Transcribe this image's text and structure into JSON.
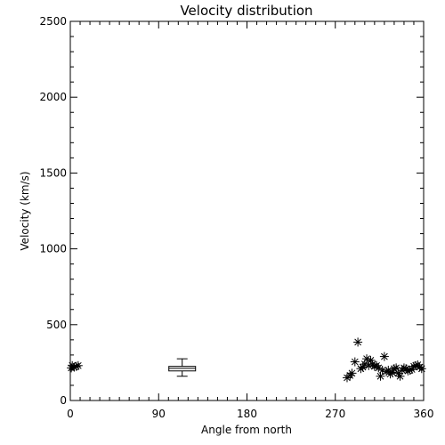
{
  "chart_data": {
    "type": "scatter",
    "title": "Velocity distribution",
    "xlabel": "Angle from north",
    "ylabel": "Velocity (km/s)",
    "xlim": [
      0,
      360
    ],
    "ylim": [
      0,
      2500
    ],
    "xticks": [
      0,
      90,
      180,
      270,
      360
    ],
    "yticks": [
      0,
      500,
      1000,
      1500,
      2000,
      2500
    ],
    "grid": false,
    "marker": "asterisk",
    "points": [
      [
        1,
        215
      ],
      [
        2,
        230
      ],
      [
        4,
        220
      ],
      [
        6,
        225
      ],
      [
        8,
        230
      ],
      [
        282,
        150
      ],
      [
        285,
        165
      ],
      [
        287,
        180
      ],
      [
        290,
        255
      ],
      [
        293,
        385
      ],
      [
        296,
        210
      ],
      [
        298,
        220
      ],
      [
        300,
        240
      ],
      [
        302,
        275
      ],
      [
        304,
        230
      ],
      [
        306,
        265
      ],
      [
        308,
        240
      ],
      [
        310,
        225
      ],
      [
        312,
        230
      ],
      [
        314,
        215
      ],
      [
        316,
        160
      ],
      [
        318,
        200
      ],
      [
        320,
        290
      ],
      [
        322,
        190
      ],
      [
        324,
        200
      ],
      [
        326,
        175
      ],
      [
        328,
        185
      ],
      [
        330,
        210
      ],
      [
        332,
        215
      ],
      [
        334,
        180
      ],
      [
        336,
        160
      ],
      [
        338,
        200
      ],
      [
        340,
        215
      ],
      [
        342,
        210
      ],
      [
        344,
        195
      ],
      [
        346,
        200
      ],
      [
        348,
        205
      ],
      [
        350,
        225
      ],
      [
        352,
        230
      ],
      [
        354,
        235
      ],
      [
        356,
        220
      ],
      [
        358,
        210
      ]
    ],
    "boxplot": {
      "x": 114,
      "whisker_low": 160,
      "q1": 195,
      "median": 212,
      "q3": 225,
      "whisker_high": 275
    }
  }
}
